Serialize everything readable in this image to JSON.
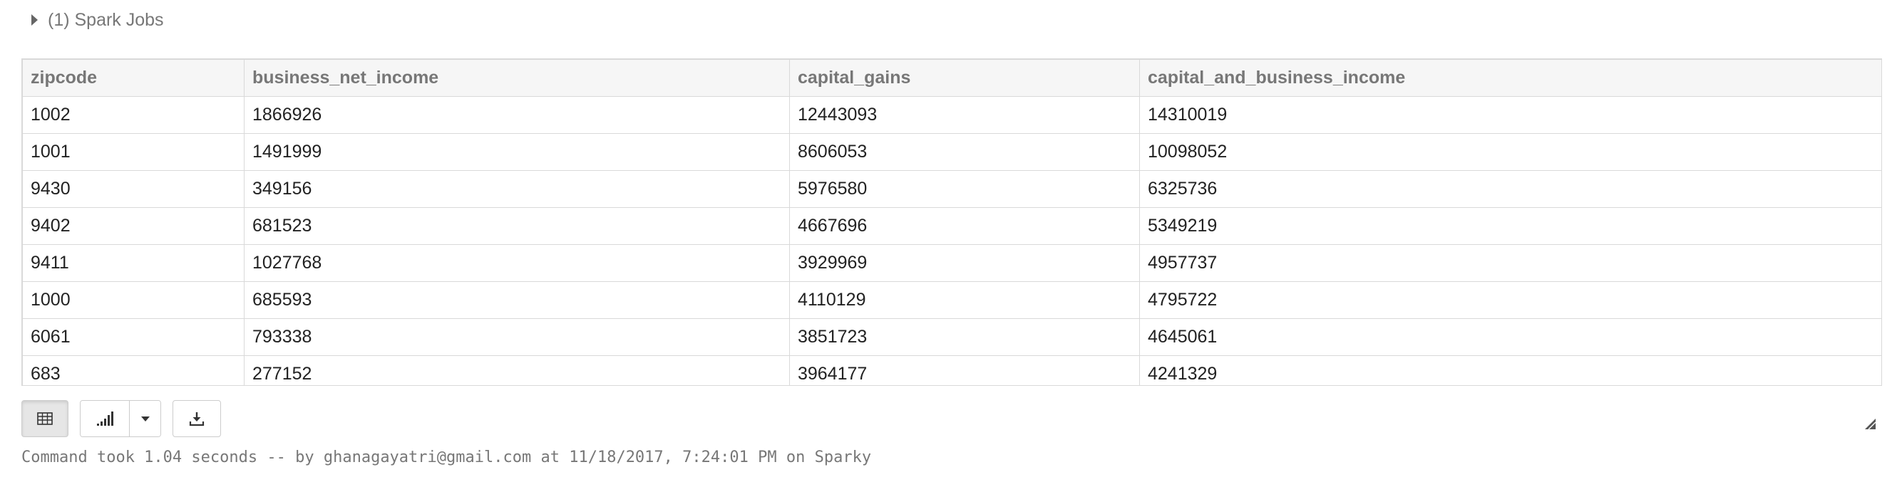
{
  "spark_jobs": {
    "label": "(1) Spark Jobs"
  },
  "table": {
    "columns": [
      "zipcode",
      "business_net_income",
      "capital_gains",
      "capital_and_business_income"
    ],
    "rows": [
      [
        "1002",
        "1866926",
        "12443093",
        "14310019"
      ],
      [
        "1001",
        "1491999",
        "8606053",
        "10098052"
      ],
      [
        "9430",
        "349156",
        "5976580",
        "6325736"
      ],
      [
        "9402",
        "681523",
        "4667696",
        "5349219"
      ],
      [
        "9411",
        "1027768",
        "3929969",
        "4957737"
      ],
      [
        "1000",
        "685593",
        "4110129",
        "4795722"
      ],
      [
        "6061",
        "793338",
        "3851723",
        "4645061"
      ],
      [
        "683",
        "277152",
        "3964177",
        "4241329"
      ]
    ]
  },
  "toolbar": {
    "buttons": [
      {
        "icon": "table-icon",
        "active": true
      },
      {
        "icon": "bar-chart-icon",
        "active": false
      },
      {
        "icon": "chevron-down-icon",
        "active": false
      },
      {
        "icon": "download-icon",
        "active": false
      }
    ]
  },
  "status": {
    "text": "Command took 1.04 seconds -- by ghanagayatri@gmail.com at 11/18/2017, 7:24:01 PM on Sparky"
  }
}
